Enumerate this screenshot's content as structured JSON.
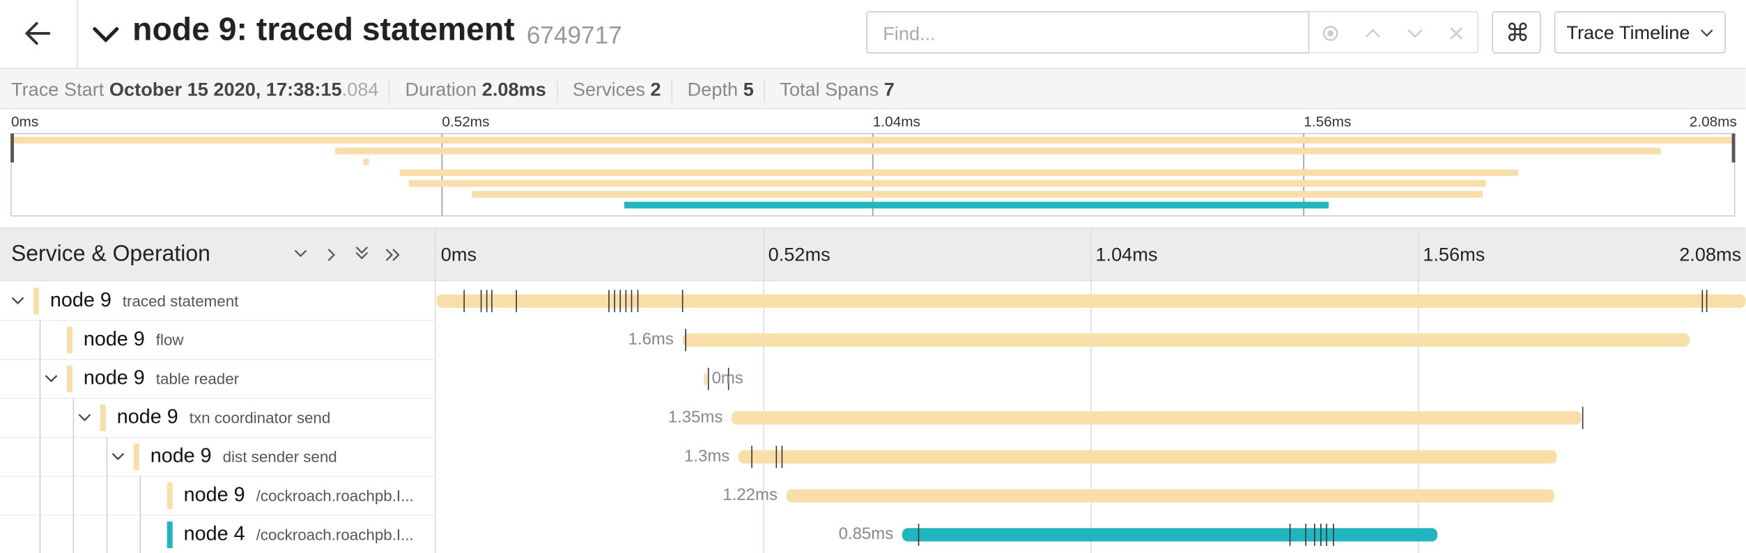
{
  "header": {
    "title": "node 9: traced statement",
    "trace_id": "6749717",
    "search_placeholder": "Find...",
    "view_menu": "Trace Timeline"
  },
  "meta": {
    "trace_start": {
      "label": "Trace Start",
      "value": "October 15 2020, 17:38:15",
      "fraction": ".084"
    },
    "stats": [
      {
        "label": "Duration",
        "value": "2.08ms"
      },
      {
        "label": "Services",
        "value": 2
      },
      {
        "label": "Depth",
        "value": 5
      },
      {
        "label": "Total Spans",
        "value": 7
      }
    ]
  },
  "timeline": {
    "column_title": "Service & Operation",
    "range": [
      0,
      2.08
    ],
    "ticks": [
      {
        "value": 0,
        "label": "0ms"
      },
      {
        "value": 0.52,
        "label": "0.52ms"
      },
      {
        "value": 1.04,
        "label": "1.04ms"
      },
      {
        "value": 1.56,
        "label": "1.56ms"
      },
      {
        "value": 2.08,
        "label": "2.08ms"
      }
    ],
    "spans": [
      {
        "service": "node 9",
        "operation": "traced statement",
        "color": "#f8dfa9",
        "depth": 0,
        "expanded": true,
        "start": 0,
        "duration": 2.08,
        "logs": [
          0.044,
          0.071,
          0.08,
          0.088,
          0.127,
          0.274,
          0.283,
          0.292,
          0.301,
          0.31,
          0.32,
          0.391,
          2.011,
          2.018
        ]
      },
      {
        "service": "node 9",
        "operation": "flow",
        "color": "#f8dfa9",
        "depth": 1,
        "expanded": false,
        "start": 0.391,
        "duration": 1.6,
        "duration_label": "1.6ms",
        "logs": [
          0.396
        ]
      },
      {
        "service": "node 9",
        "operation": "table reader",
        "color": "#f8dfa9",
        "depth": 1,
        "expanded": true,
        "start": 0.425,
        "duration": 0,
        "duration_label": "0ms",
        "logs": [
          0.432,
          0.464
        ]
      },
      {
        "service": "node 9",
        "operation": "txn coordinator send",
        "color": "#f8dfa9",
        "depth": 2,
        "expanded": true,
        "start": 0.469,
        "duration": 1.35,
        "duration_label": "1.35ms",
        "logs": [
          1.821
        ]
      },
      {
        "service": "node 9",
        "operation": "dist sender send",
        "color": "#f8dfa9",
        "depth": 3,
        "expanded": true,
        "start": 0.48,
        "duration": 1.3,
        "duration_label": "1.3ms",
        "logs": [
          0.501,
          0.54,
          0.549
        ]
      },
      {
        "service": "node 9",
        "operation": "/cockroach.roachpb.I...",
        "color": "#f8dfa9",
        "depth": 4,
        "expanded": false,
        "start": 0.556,
        "duration": 1.22,
        "duration_label": "1.22ms",
        "logs": []
      },
      {
        "service": "node 4",
        "operation": "/cockroach.roachpb.I...",
        "color": "#20b5bf",
        "depth": 4,
        "expanded": false,
        "start": 0.74,
        "duration": 0.85,
        "duration_label": "0.85ms",
        "logs": [
          0.766,
          1.356,
          1.381,
          1.395,
          1.405,
          1.414,
          1.425
        ]
      }
    ]
  }
}
